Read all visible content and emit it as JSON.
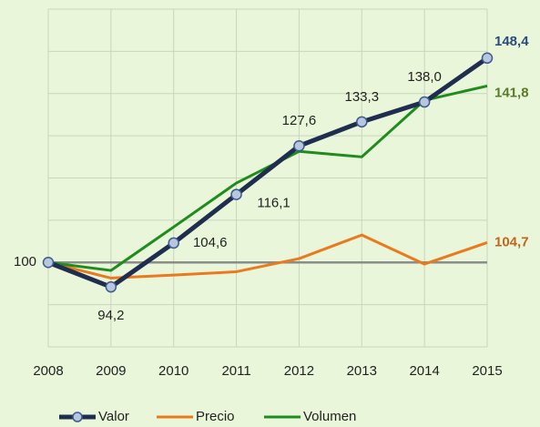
{
  "chart_data": {
    "type": "line",
    "categories": [
      "2008",
      "2009",
      "2010",
      "2011",
      "2012",
      "2013",
      "2014",
      "2015"
    ],
    "series": [
      {
        "name": "Valor",
        "color": "#1f2d4e",
        "marker": true,
        "label_color": "#2b4a7c",
        "values": [
          100,
          94.2,
          104.6,
          116.1,
          127.6,
          133.3,
          138.0,
          148.4
        ],
        "value_labels": [
          "100",
          "94,2",
          "104,6",
          "116,1",
          "127,6",
          "133,3",
          "138,0",
          "148,4"
        ]
      },
      {
        "name": "Precio",
        "color": "#ea7a1e",
        "marker": false,
        "label_color": "#c0651a",
        "values": [
          100,
          96.3,
          97.0,
          97.8,
          100.9,
          106.5,
          99.6,
          104.7
        ],
        "value_labels": [
          null,
          null,
          null,
          null,
          null,
          null,
          null,
          "104,7"
        ]
      },
      {
        "name": "Volumen",
        "color": "#1e8c1e",
        "marker": false,
        "label_color": "#5a7a2a",
        "values": [
          100,
          98.1,
          108.4,
          118.8,
          126.3,
          125.0,
          138.4,
          141.8
        ],
        "value_labels": [
          null,
          null,
          null,
          null,
          null,
          null,
          null,
          "141,8"
        ]
      }
    ],
    "baseline": 100,
    "ylim": [
      80,
      160
    ],
    "yticks": [
      80,
      90,
      100,
      110,
      120,
      130,
      140,
      150,
      160
    ],
    "grid": true,
    "legend": "bottom"
  }
}
